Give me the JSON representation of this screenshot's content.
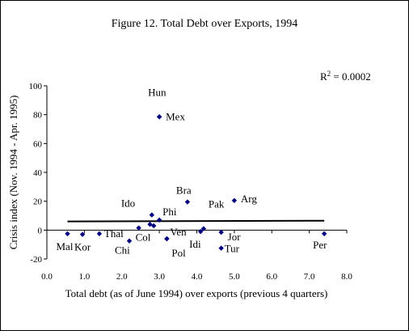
{
  "chart_data": {
    "type": "scatter",
    "title": "Figure 12. Total Debt over Exports, 1994",
    "xlabel": "Total debt (as of June 1994) over exports (previous 4 quarters)",
    "ylabel": "Crisis index (Nov. 1994 - Apr. 1995)",
    "xlim": [
      0,
      8
    ],
    "ylim": [
      -20,
      100
    ],
    "xticks": [
      "0.0",
      "1.0",
      "2.0",
      "3.0",
      "4.0",
      "5.0",
      "6.0",
      "7.0",
      "8.0"
    ],
    "yticks": [
      "-20",
      "0",
      "20",
      "40",
      "60",
      "80",
      "100"
    ],
    "grid": false,
    "legend": "none",
    "marker_color": "#000080",
    "annotation": {
      "r2_label": "R",
      "r2_sup": "2",
      "r2_value": " = 0.0002"
    },
    "points": [
      {
        "label": "Mal",
        "x": 0.55,
        "y": -2.5
      },
      {
        "label": "Kor",
        "x": 0.95,
        "y": -3.0
      },
      {
        "label": "Thai",
        "x": 1.4,
        "y": -2.5
      },
      {
        "label": "Chi",
        "x": 2.2,
        "y": -7.5
      },
      {
        "label": "Col",
        "x": 2.45,
        "y": 1.5
      },
      {
        "label": "",
        "x": 2.75,
        "y": 4.0
      },
      {
        "label": "Ido",
        "x": 2.8,
        "y": 10.5
      },
      {
        "label": "",
        "x": 2.85,
        "y": 3.0
      },
      {
        "label": "Phi",
        "x": 3.0,
        "y": 7.0
      },
      {
        "label": "Hun",
        "x": 3.0,
        "y": 78.5
      },
      {
        "label": "Mex",
        "x": 3.0,
        "y": 78.5
      },
      {
        "label": "Pol",
        "x": 3.2,
        "y": -6.0
      },
      {
        "label": "Bra",
        "x": 3.75,
        "y": 19.5
      },
      {
        "label": "Idi",
        "x": 4.1,
        "y": -1.0
      },
      {
        "label": "Pak",
        "x": 4.18,
        "y": 1.0
      },
      {
        "label": "Jor",
        "x": 4.65,
        "y": -1.5
      },
      {
        "label": "Tur",
        "x": 4.65,
        "y": -12.5
      },
      {
        "label": "Arg",
        "x": 5.0,
        "y": 20.5
      },
      {
        "label": "Per",
        "x": 7.4,
        "y": -2.5
      },
      {
        "label": "Ven",
        "x": 3.2,
        "y": -6.0
      }
    ],
    "trendline": {
      "x": [
        0.55,
        7.4
      ],
      "y": [
        6.0,
        6.5
      ]
    }
  }
}
